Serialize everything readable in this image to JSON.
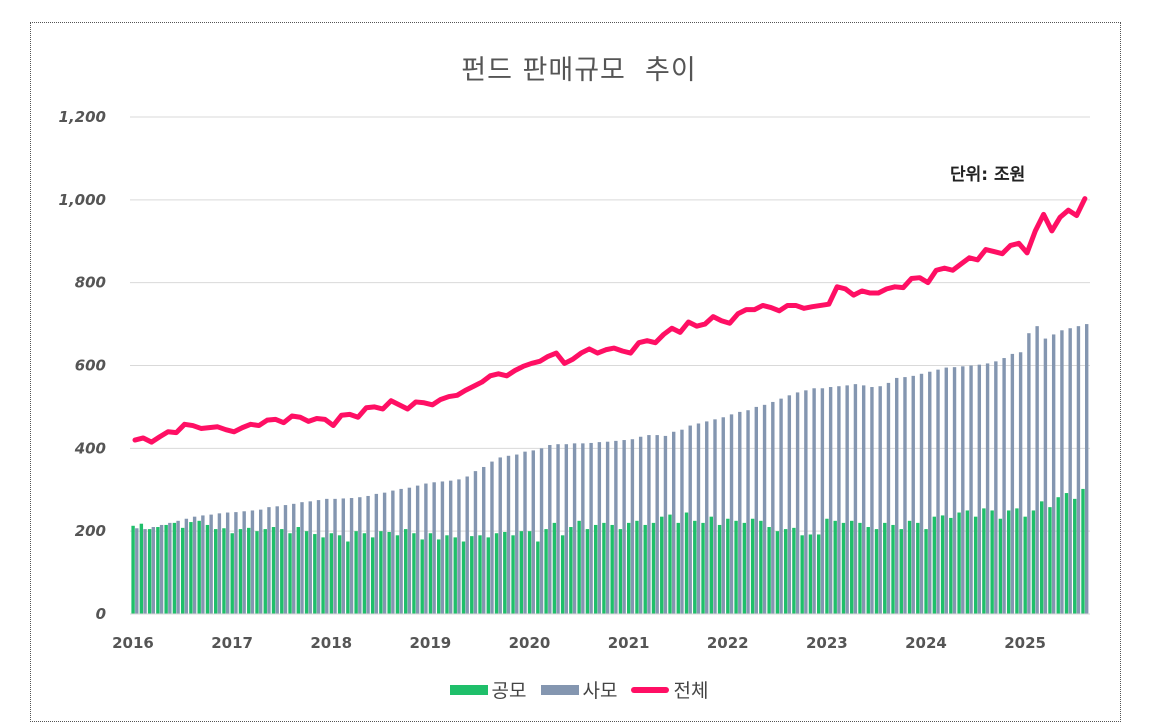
{
  "chart_data": {
    "type": "bar+line",
    "title": "펀드 판매규모  추이",
    "unit_note": "단위: 조원",
    "ylim": [
      0,
      1200
    ],
    "yticks": [
      "0",
      "200",
      "400",
      "600",
      "800",
      "1,000",
      "1,200"
    ],
    "ytick_values": [
      0,
      200,
      400,
      600,
      800,
      1000,
      1200
    ],
    "xtick_labels": [
      "2016",
      "2017",
      "2018",
      "2019",
      "2020",
      "2021",
      "2022",
      "2023",
      "2024",
      "2025"
    ],
    "x_start": "2016-01",
    "x_end": "2025-08",
    "grid": true,
    "legend_position": "bottom",
    "colors": {
      "public": "#1fbf6a",
      "private": "#8496b0",
      "total": "#ff0f64"
    },
    "series": [
      {
        "name": "공모",
        "type": "bar",
        "values": [
          213,
          218,
          205,
          210,
          215,
          220,
          208,
          222,
          225,
          215,
          205,
          207,
          195,
          205,
          208,
          200,
          205,
          210,
          205,
          195,
          210,
          200,
          193,
          185,
          195,
          190,
          175,
          200,
          195,
          185,
          200,
          198,
          190,
          205,
          195,
          180,
          195,
          180,
          190,
          185,
          175,
          188,
          190,
          185,
          195,
          198,
          190,
          200,
          200,
          175,
          205,
          220,
          190,
          210,
          225,
          205,
          215,
          220,
          215,
          205,
          220,
          225,
          215,
          220,
          235,
          240,
          220,
          245,
          225,
          220,
          235,
          215,
          230,
          225,
          220,
          230,
          225,
          210,
          200,
          205,
          208,
          190,
          192,
          192,
          230,
          225,
          220,
          225,
          220,
          210,
          205,
          220,
          215,
          205,
          225,
          220,
          205,
          235,
          238,
          232,
          245,
          250,
          235,
          255,
          250,
          230,
          250,
          255,
          235,
          250,
          272,
          258,
          282,
          292,
          278,
          302
        ]
      },
      {
        "name": "사모",
        "type": "bar",
        "values": [
          207,
          205,
          210,
          215,
          220,
          225,
          230,
          235,
          238,
          240,
          243,
          245,
          246,
          248,
          250,
          252,
          258,
          260,
          263,
          266,
          270,
          272,
          275,
          278,
          278,
          279,
          280,
          282,
          285,
          290,
          293,
          298,
          302,
          305,
          310,
          315,
          318,
          320,
          322,
          325,
          332,
          345,
          355,
          368,
          378,
          382,
          385,
          392,
          395,
          400,
          408,
          410,
          410,
          412,
          412,
          413,
          415,
          416,
          418,
          420,
          422,
          428,
          432,
          432,
          430,
          440,
          445,
          455,
          460,
          465,
          470,
          475,
          482,
          488,
          492,
          500,
          505,
          512,
          520,
          528,
          535,
          540,
          545,
          545,
          548,
          550,
          552,
          555,
          552,
          548,
          550,
          558,
          570,
          572,
          575,
          580,
          585,
          590,
          595,
          596,
          598,
          600,
          602,
          605,
          610,
          618,
          628,
          632,
          678,
          695,
          665,
          675,
          685,
          690,
          695,
          700
        ]
      },
      {
        "name": "전체",
        "type": "line",
        "values": [
          420,
          425,
          415,
          428,
          440,
          438,
          458,
          455,
          448,
          450,
          452,
          445,
          440,
          450,
          458,
          455,
          468,
          470,
          462,
          478,
          475,
          465,
          472,
          470,
          455,
          480,
          482,
          475,
          498,
          500,
          495,
          515,
          505,
          495,
          512,
          510,
          505,
          518,
          525,
          528,
          540,
          550,
          560,
          575,
          580,
          575,
          588,
          598,
          605,
          610,
          622,
          630,
          605,
          615,
          630,
          640,
          630,
          638,
          642,
          635,
          630,
          655,
          660,
          655,
          675,
          690,
          680,
          705,
          695,
          700,
          718,
          708,
          702,
          725,
          735,
          735,
          745,
          740,
          732,
          745,
          745,
          738,
          742,
          745,
          748,
          790,
          785,
          770,
          780,
          775,
          775,
          785,
          790,
          788,
          810,
          812,
          800,
          830,
          835,
          830,
          845,
          860,
          855,
          880,
          875,
          870,
          890,
          895,
          872,
          925,
          965,
          925,
          958,
          975,
          962,
          1003
        ]
      }
    ]
  }
}
